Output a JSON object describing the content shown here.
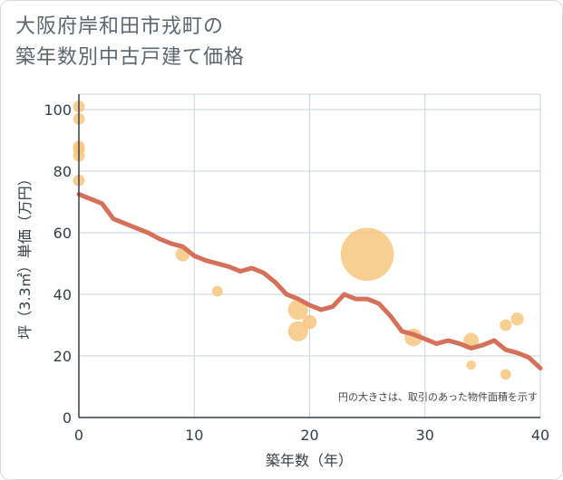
{
  "title": {
    "line1": "大阪府岸和田市戎町の",
    "line2": "築年数別中古戸建て価格"
  },
  "chart_data": {
    "type": "scatter",
    "title": "大阪府岸和田市戎町の築年数別中古戸建て価格",
    "xlabel": "築年数（年）",
    "ylabel": "坪（3.3㎡）単価（万円）",
    "xlim": [
      0,
      40
    ],
    "ylim": [
      0,
      105
    ],
    "x_ticks": [
      0,
      10,
      20,
      30,
      40
    ],
    "y_ticks": [
      0,
      20,
      40,
      60,
      80,
      100
    ],
    "grid": true,
    "note": "円の大きさは、取引のあった物件面積を示す",
    "colors": {
      "bubble": "#f5c57a",
      "line": "#d5705a",
      "grid": "#c9d3db",
      "axis": "#333f48"
    },
    "points": [
      {
        "x": 0,
        "y": 101,
        "size": 1
      },
      {
        "x": 0,
        "y": 97,
        "size": 1
      },
      {
        "x": 0,
        "y": 88,
        "size": 1
      },
      {
        "x": 0,
        "y": 87,
        "size": 1
      },
      {
        "x": 0,
        "y": 85,
        "size": 1
      },
      {
        "x": 0,
        "y": 77,
        "size": 1
      },
      {
        "x": 9,
        "y": 53,
        "size": 1.2
      },
      {
        "x": 12,
        "y": 41,
        "size": 0.9
      },
      {
        "x": 19,
        "y": 35,
        "size": 1.7
      },
      {
        "x": 19,
        "y": 28,
        "size": 1.7
      },
      {
        "x": 20,
        "y": 31,
        "size": 1.2
      },
      {
        "x": 25,
        "y": 53,
        "size": 4.5
      },
      {
        "x": 29,
        "y": 26,
        "size": 1.5
      },
      {
        "x": 34,
        "y": 25,
        "size": 1.3
      },
      {
        "x": 34,
        "y": 17,
        "size": 0.8
      },
      {
        "x": 37,
        "y": 30,
        "size": 1
      },
      {
        "x": 37,
        "y": 14,
        "size": 0.9
      },
      {
        "x": 38,
        "y": 32,
        "size": 1.1
      }
    ],
    "trend_line": {
      "x": [
        0,
        1,
        2,
        3,
        4,
        5,
        6,
        7,
        8,
        9,
        10,
        11,
        12,
        13,
        14,
        15,
        16,
        17,
        18,
        19,
        20,
        21,
        22,
        23,
        24,
        25,
        26,
        27,
        28,
        29,
        30,
        31,
        32,
        33,
        34,
        35,
        36,
        37,
        38,
        39,
        40
      ],
      "y": [
        72.5,
        71,
        69.5,
        64.5,
        63,
        61.5,
        60,
        58,
        56.5,
        55.5,
        52.5,
        51,
        50,
        49,
        47.5,
        48.5,
        47,
        44,
        40,
        38.5,
        36.5,
        35,
        36,
        40,
        38.5,
        38.5,
        37,
        33,
        28,
        27,
        25.5,
        24,
        25,
        24,
        22.5,
        23.5,
        25,
        22,
        21,
        19.5,
        16
      ]
    }
  }
}
